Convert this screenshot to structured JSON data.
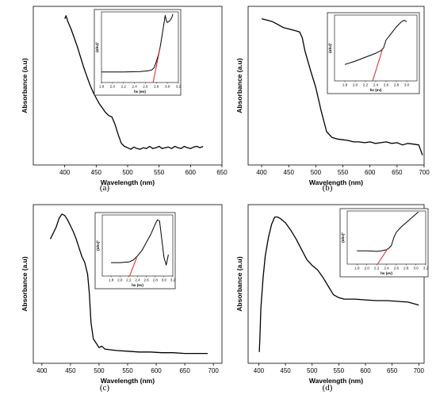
{
  "chart_data": [
    {
      "type": "line",
      "caption": "(a)",
      "xlabel": "Wavelength (nm)",
      "ylabel": "Absorbance (a.u)",
      "xlim": [
        350,
        650
      ],
      "xticks": [
        400,
        450,
        500,
        550,
        600,
        650
      ],
      "y_ticks_shown": false,
      "series": [
        {
          "x": [
            400,
            402,
            405,
            410,
            415,
            420,
            425,
            430,
            435,
            440,
            445,
            450,
            455,
            460,
            465,
            470,
            475,
            480,
            485,
            490,
            495,
            500,
            505,
            510,
            515,
            520,
            525,
            530,
            535,
            540,
            545,
            550,
            555,
            560,
            565,
            570,
            575,
            580,
            585,
            590,
            595,
            600,
            605,
            610,
            615,
            620
          ],
          "y": [
            0.97,
            0.99,
            0.95,
            0.9,
            0.84,
            0.78,
            0.71,
            0.64,
            0.58,
            0.52,
            0.47,
            0.43,
            0.39,
            0.36,
            0.33,
            0.31,
            0.3,
            0.25,
            0.18,
            0.12,
            0.1,
            0.09,
            0.08,
            0.095,
            0.085,
            0.08,
            0.09,
            0.085,
            0.1,
            0.085,
            0.09,
            0.1,
            0.085,
            0.09,
            0.095,
            0.085,
            0.1,
            0.09,
            0.085,
            0.1,
            0.09,
            0.085,
            0.095,
            0.1,
            0.09,
            0.1
          ]
        }
      ],
      "inset": {
        "xlabel": "hv (ev)",
        "ylabel": "(αhν)²",
        "xlim": [
          1.8,
          3.2
        ],
        "xticks": [
          "1.8",
          "2.0",
          "2.2",
          "2.4",
          "2.6",
          "2.8",
          "3.0",
          "3.2"
        ],
        "curve": {
          "x": [
            1.8,
            2.2,
            2.5,
            2.65,
            2.72,
            2.76,
            2.8,
            2.84,
            2.88,
            2.92,
            2.96,
            2.98,
            3.0,
            3.02,
            3.05,
            3.08,
            3.1
          ],
          "y": [
            0.15,
            0.15,
            0.155,
            0.165,
            0.18,
            0.21,
            0.3,
            0.4,
            0.55,
            0.75,
            0.95,
            0.88,
            0.85,
            0.86,
            0.88,
            0.92,
            0.97
          ]
        },
        "tangent": {
          "x": [
            2.74,
            2.87
          ],
          "y": [
            0.0,
            0.5
          ]
        }
      }
    },
    {
      "type": "line",
      "caption": "(b)",
      "xlabel": "Wavelength (nm)",
      "ylabel": "Absorbance (a.u)",
      "xlim": [
        375,
        700
      ],
      "xticks": [
        400,
        450,
        500,
        550,
        600,
        650,
        700
      ],
      "y_ticks_shown": false,
      "series": [
        {
          "x": [
            400,
            410,
            420,
            430,
            440,
            450,
            460,
            470,
            475,
            480,
            490,
            500,
            510,
            520,
            530,
            540,
            550,
            560,
            570,
            580,
            590,
            600,
            610,
            620,
            630,
            640,
            650,
            660,
            670,
            680,
            690,
            695,
            697
          ],
          "y": [
            0.97,
            0.96,
            0.95,
            0.93,
            0.91,
            0.9,
            0.89,
            0.88,
            0.84,
            0.75,
            0.62,
            0.5,
            0.34,
            0.2,
            0.16,
            0.15,
            0.145,
            0.14,
            0.13,
            0.13,
            0.125,
            0.13,
            0.12,
            0.125,
            0.13,
            0.12,
            0.125,
            0.11,
            0.12,
            0.115,
            0.11,
            0.06,
            0.04
          ]
        }
      ],
      "inset": {
        "xlabel": "hv (ev)",
        "ylabel": "(αhν)²",
        "xlim": [
          1.6,
          3.2
        ],
        "xticks": [
          "1.8",
          "2.0",
          "2.2",
          "2.4",
          "2.6",
          "2.8",
          "3.0"
        ],
        "curve": {
          "x": [
            1.8,
            2.0,
            2.2,
            2.4,
            2.5,
            2.55,
            2.6,
            2.7,
            2.8,
            2.9,
            2.95,
            3.0
          ],
          "y": [
            0.25,
            0.3,
            0.36,
            0.42,
            0.46,
            0.5,
            0.62,
            0.72,
            0.82,
            0.9,
            0.92,
            0.9
          ]
        },
        "tangent": {
          "x": [
            2.34,
            2.53
          ],
          "y": [
            0.0,
            0.48
          ]
        }
      }
    },
    {
      "type": "line",
      "caption": "(c)",
      "xlabel": "Wavelength (nm)",
      "ylabel": "Absorbance (a.u)",
      "xlim": [
        385,
        715
      ],
      "xticks": [
        400,
        450,
        500,
        550,
        600,
        650,
        700
      ],
      "y_ticks_shown": false,
      "series": [
        {
          "x": [
            415,
            420,
            425,
            430,
            435,
            440,
            445,
            450,
            455,
            460,
            465,
            470,
            475,
            480,
            483,
            486,
            490,
            495,
            500,
            505,
            510,
            520,
            530,
            550,
            570,
            590,
            610,
            630,
            650,
            670,
            690
          ],
          "y": [
            0.82,
            0.86,
            0.9,
            0.96,
            0.99,
            0.98,
            0.95,
            0.91,
            0.87,
            0.82,
            0.76,
            0.7,
            0.66,
            0.58,
            0.45,
            0.25,
            0.14,
            0.11,
            0.08,
            0.09,
            0.07,
            0.065,
            0.06,
            0.055,
            0.05,
            0.05,
            0.045,
            0.045,
            0.04,
            0.04,
            0.04
          ]
        }
      ],
      "inset": {
        "xlabel": "hv (ev)",
        "ylabel": "(αhν)²",
        "xlim": [
          1.6,
          3.2
        ],
        "xticks": [
          "1.8",
          "2.0",
          "2.2",
          "2.4",
          "2.6",
          "2.8",
          "3.0",
          "3.2"
        ],
        "curve": {
          "x": [
            1.8,
            2.0,
            2.2,
            2.3,
            2.4,
            2.5,
            2.6,
            2.7,
            2.8,
            2.85,
            2.9,
            2.95,
            3.0,
            3.05,
            3.1
          ],
          "y": [
            0.22,
            0.22,
            0.23,
            0.26,
            0.33,
            0.42,
            0.55,
            0.68,
            0.85,
            0.92,
            0.9,
            0.6,
            0.3,
            0.18,
            0.35
          ]
        },
        "tangent": {
          "x": [
            2.22,
            2.38
          ],
          "y": [
            0.0,
            0.3
          ]
        }
      }
    },
    {
      "type": "line",
      "caption": "(d)",
      "xlabel": "Wavelength (nm)",
      "ylabel": "Absorbance (a.u)",
      "xlim": [
        380,
        710
      ],
      "xticks": [
        400,
        450,
        500,
        550,
        600,
        650,
        700
      ],
      "y_ticks_shown": false,
      "series": [
        {
          "x": [
            401,
            402,
            404,
            408,
            412,
            418,
            424,
            430,
            435,
            440,
            450,
            460,
            470,
            480,
            490,
            500,
            510,
            520,
            530,
            540,
            550,
            560,
            580,
            600,
            620,
            640,
            660,
            680,
            700
          ],
          "y": [
            0.05,
            0.14,
            0.35,
            0.55,
            0.7,
            0.83,
            0.92,
            0.97,
            0.97,
            0.96,
            0.93,
            0.88,
            0.82,
            0.75,
            0.68,
            0.64,
            0.61,
            0.56,
            0.5,
            0.44,
            0.42,
            0.41,
            0.41,
            0.405,
            0.4,
            0.4,
            0.395,
            0.39,
            0.37
          ]
        }
      ],
      "inset": {
        "xlabel": "hv (ev)",
        "ylabel": "(αhν)²",
        "xlim": [
          1.6,
          3.2
        ],
        "xticks": [
          "1.8",
          "2.0",
          "2.2",
          "2.4",
          "2.6",
          "2.8",
          "3.0",
          "3.2"
        ],
        "curve": {
          "x": [
            1.8,
            2.0,
            2.2,
            2.3,
            2.4,
            2.45,
            2.5,
            2.55,
            2.6,
            2.7,
            2.8,
            2.9,
            3.0,
            3.05
          ],
          "y": [
            0.25,
            0.25,
            0.24,
            0.25,
            0.27,
            0.3,
            0.35,
            0.5,
            0.6,
            0.7,
            0.78,
            0.86,
            0.94,
            0.98
          ]
        },
        "tangent": {
          "x": [
            2.22,
            2.43
          ],
          "y": [
            0.0,
            0.3
          ]
        }
      }
    }
  ]
}
